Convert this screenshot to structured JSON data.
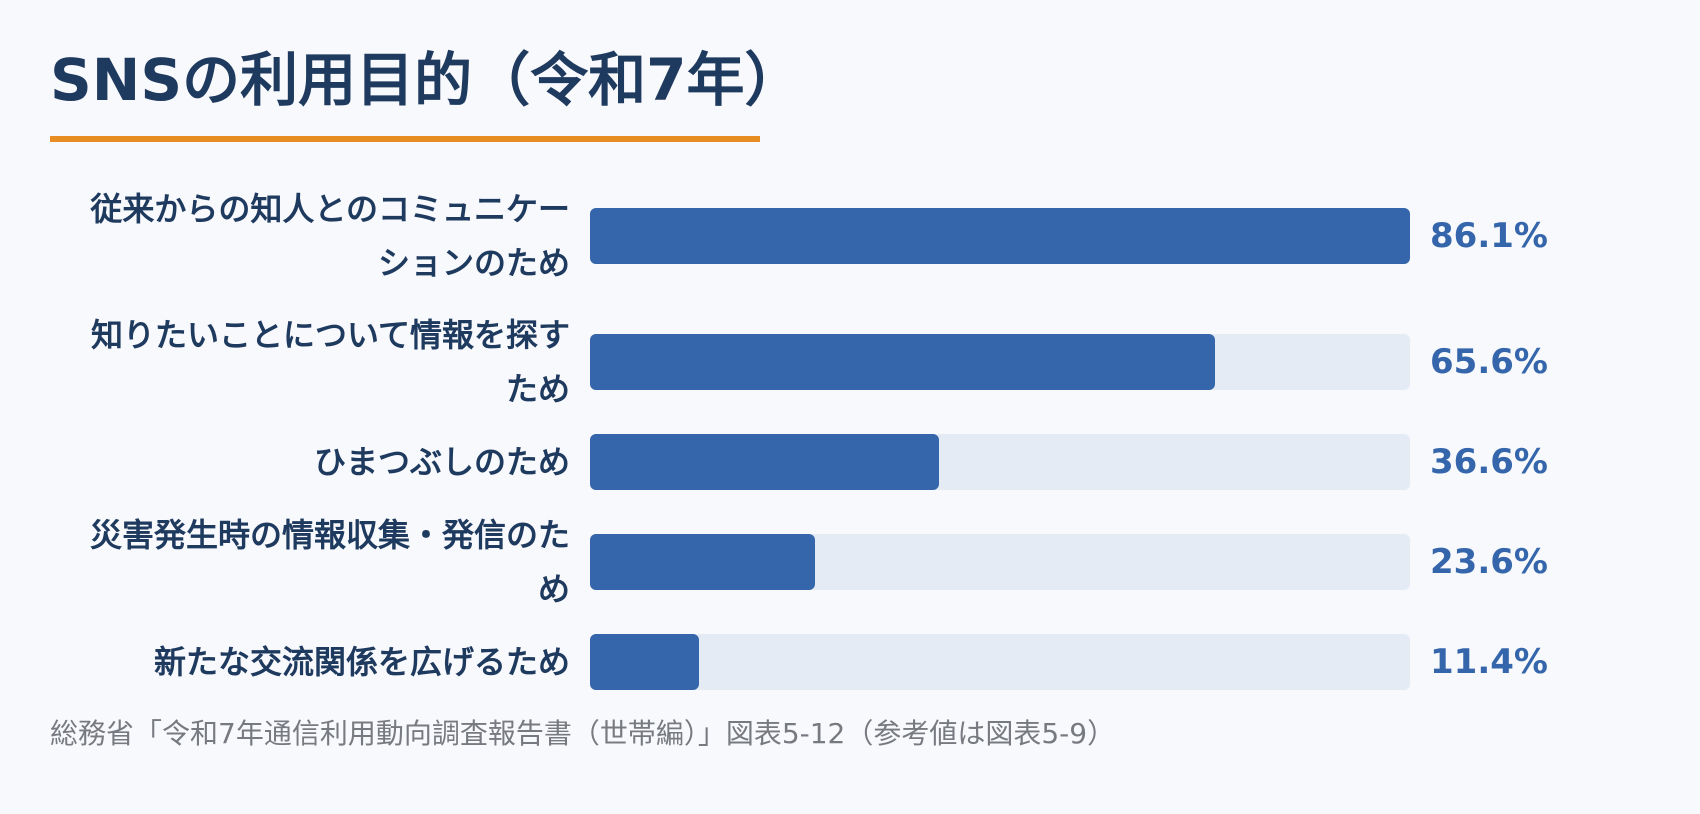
{
  "title": "SNSの利用目的（令和7年）",
  "source": "総務省「令和7年通信利用動向調査報告書（世帯編）」図表5-12（参考値は図表5-9）",
  "colors": {
    "bar": "#3566ab",
    "track": "#e4ebf5",
    "accent_rule": "#e88c24",
    "title": "#1f3a5f"
  },
  "chart_data": {
    "type": "bar",
    "orientation": "horizontal",
    "title": "SNSの利用目的（令和7年）",
    "xlim": [
      0,
      86.1
    ],
    "categories": [
      "従来からの知人とのコミュニケーションのため",
      "知りたいことについて情報を探すため",
      "ひまつぶしのため",
      "災害発生時の情報収集・発信のため",
      "新たな交流関係を広げるため"
    ],
    "values": [
      86.1,
      65.6,
      36.6,
      23.6,
      11.4
    ],
    "value_labels": [
      "86.1%",
      "65.6%",
      "36.6%",
      "23.6%",
      "11.4%"
    ]
  }
}
